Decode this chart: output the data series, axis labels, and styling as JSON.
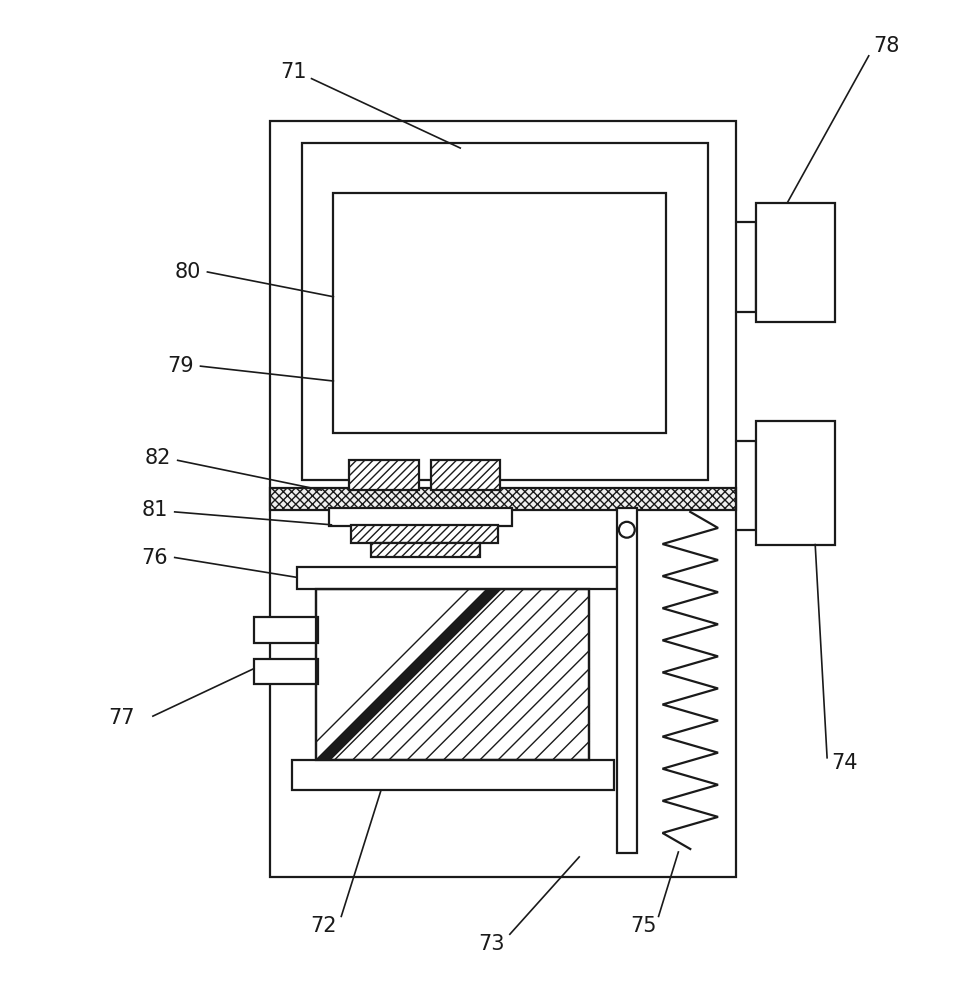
{
  "bg_color": "#ffffff",
  "line_color": "#1a1a1a",
  "lw": 1.6,
  "lw_thin": 1.0,
  "label_fs": 15,
  "label_color": "#1a1a1a",
  "fig_w": 9.78,
  "fig_h": 10.0
}
